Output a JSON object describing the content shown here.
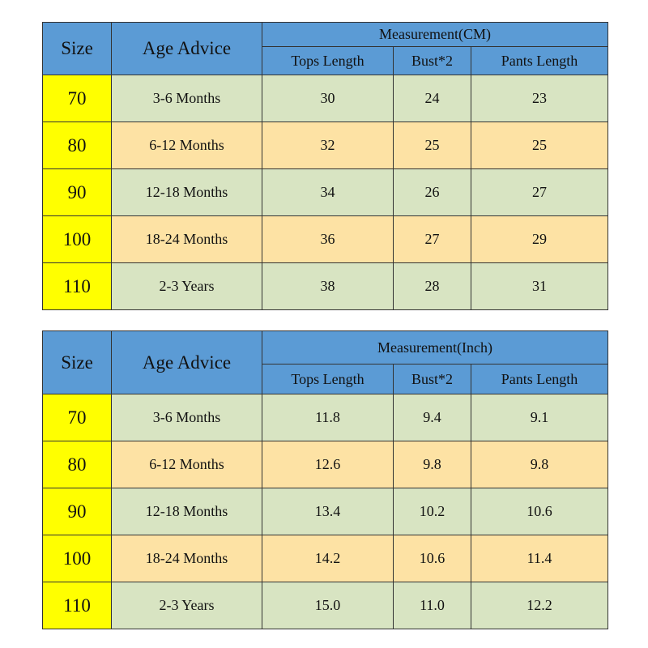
{
  "tables": [
    {
      "size_header": "Size",
      "age_header": "Age Advice",
      "group_header": "Measurement(CM)",
      "sub_headers": [
        "Tops Length",
        "Bust*2",
        "Pants Length"
      ],
      "rows": [
        [
          "70",
          "3-6 Months",
          "30",
          "24",
          "23"
        ],
        [
          "80",
          "6-12 Months",
          "32",
          "25",
          "25"
        ],
        [
          "90",
          "12-18 Months",
          "34",
          "26",
          "27"
        ],
        [
          "100",
          "18-24 Months",
          "36",
          "27",
          "29"
        ],
        [
          "110",
          "2-3 Years",
          "38",
          "28",
          "31"
        ]
      ]
    },
    {
      "size_header": "Size",
      "age_header": "Age Advice",
      "group_header": "Measurement(Inch)",
      "sub_headers": [
        "Tops Length",
        "Bust*2",
        "Pants Length"
      ],
      "rows": [
        [
          "70",
          "3-6 Months",
          "11.8",
          "9.4",
          "9.1"
        ],
        [
          "80",
          "6-12 Months",
          "12.6",
          "9.8",
          "9.8"
        ],
        [
          "90",
          "12-18 Months",
          "13.4",
          "10.2",
          "10.6"
        ],
        [
          "100",
          "18-24 Months",
          "14.2",
          "10.6",
          "11.4"
        ],
        [
          "110",
          "2-3 Years",
          "15.0",
          "11.0",
          "12.2"
        ]
      ]
    }
  ]
}
